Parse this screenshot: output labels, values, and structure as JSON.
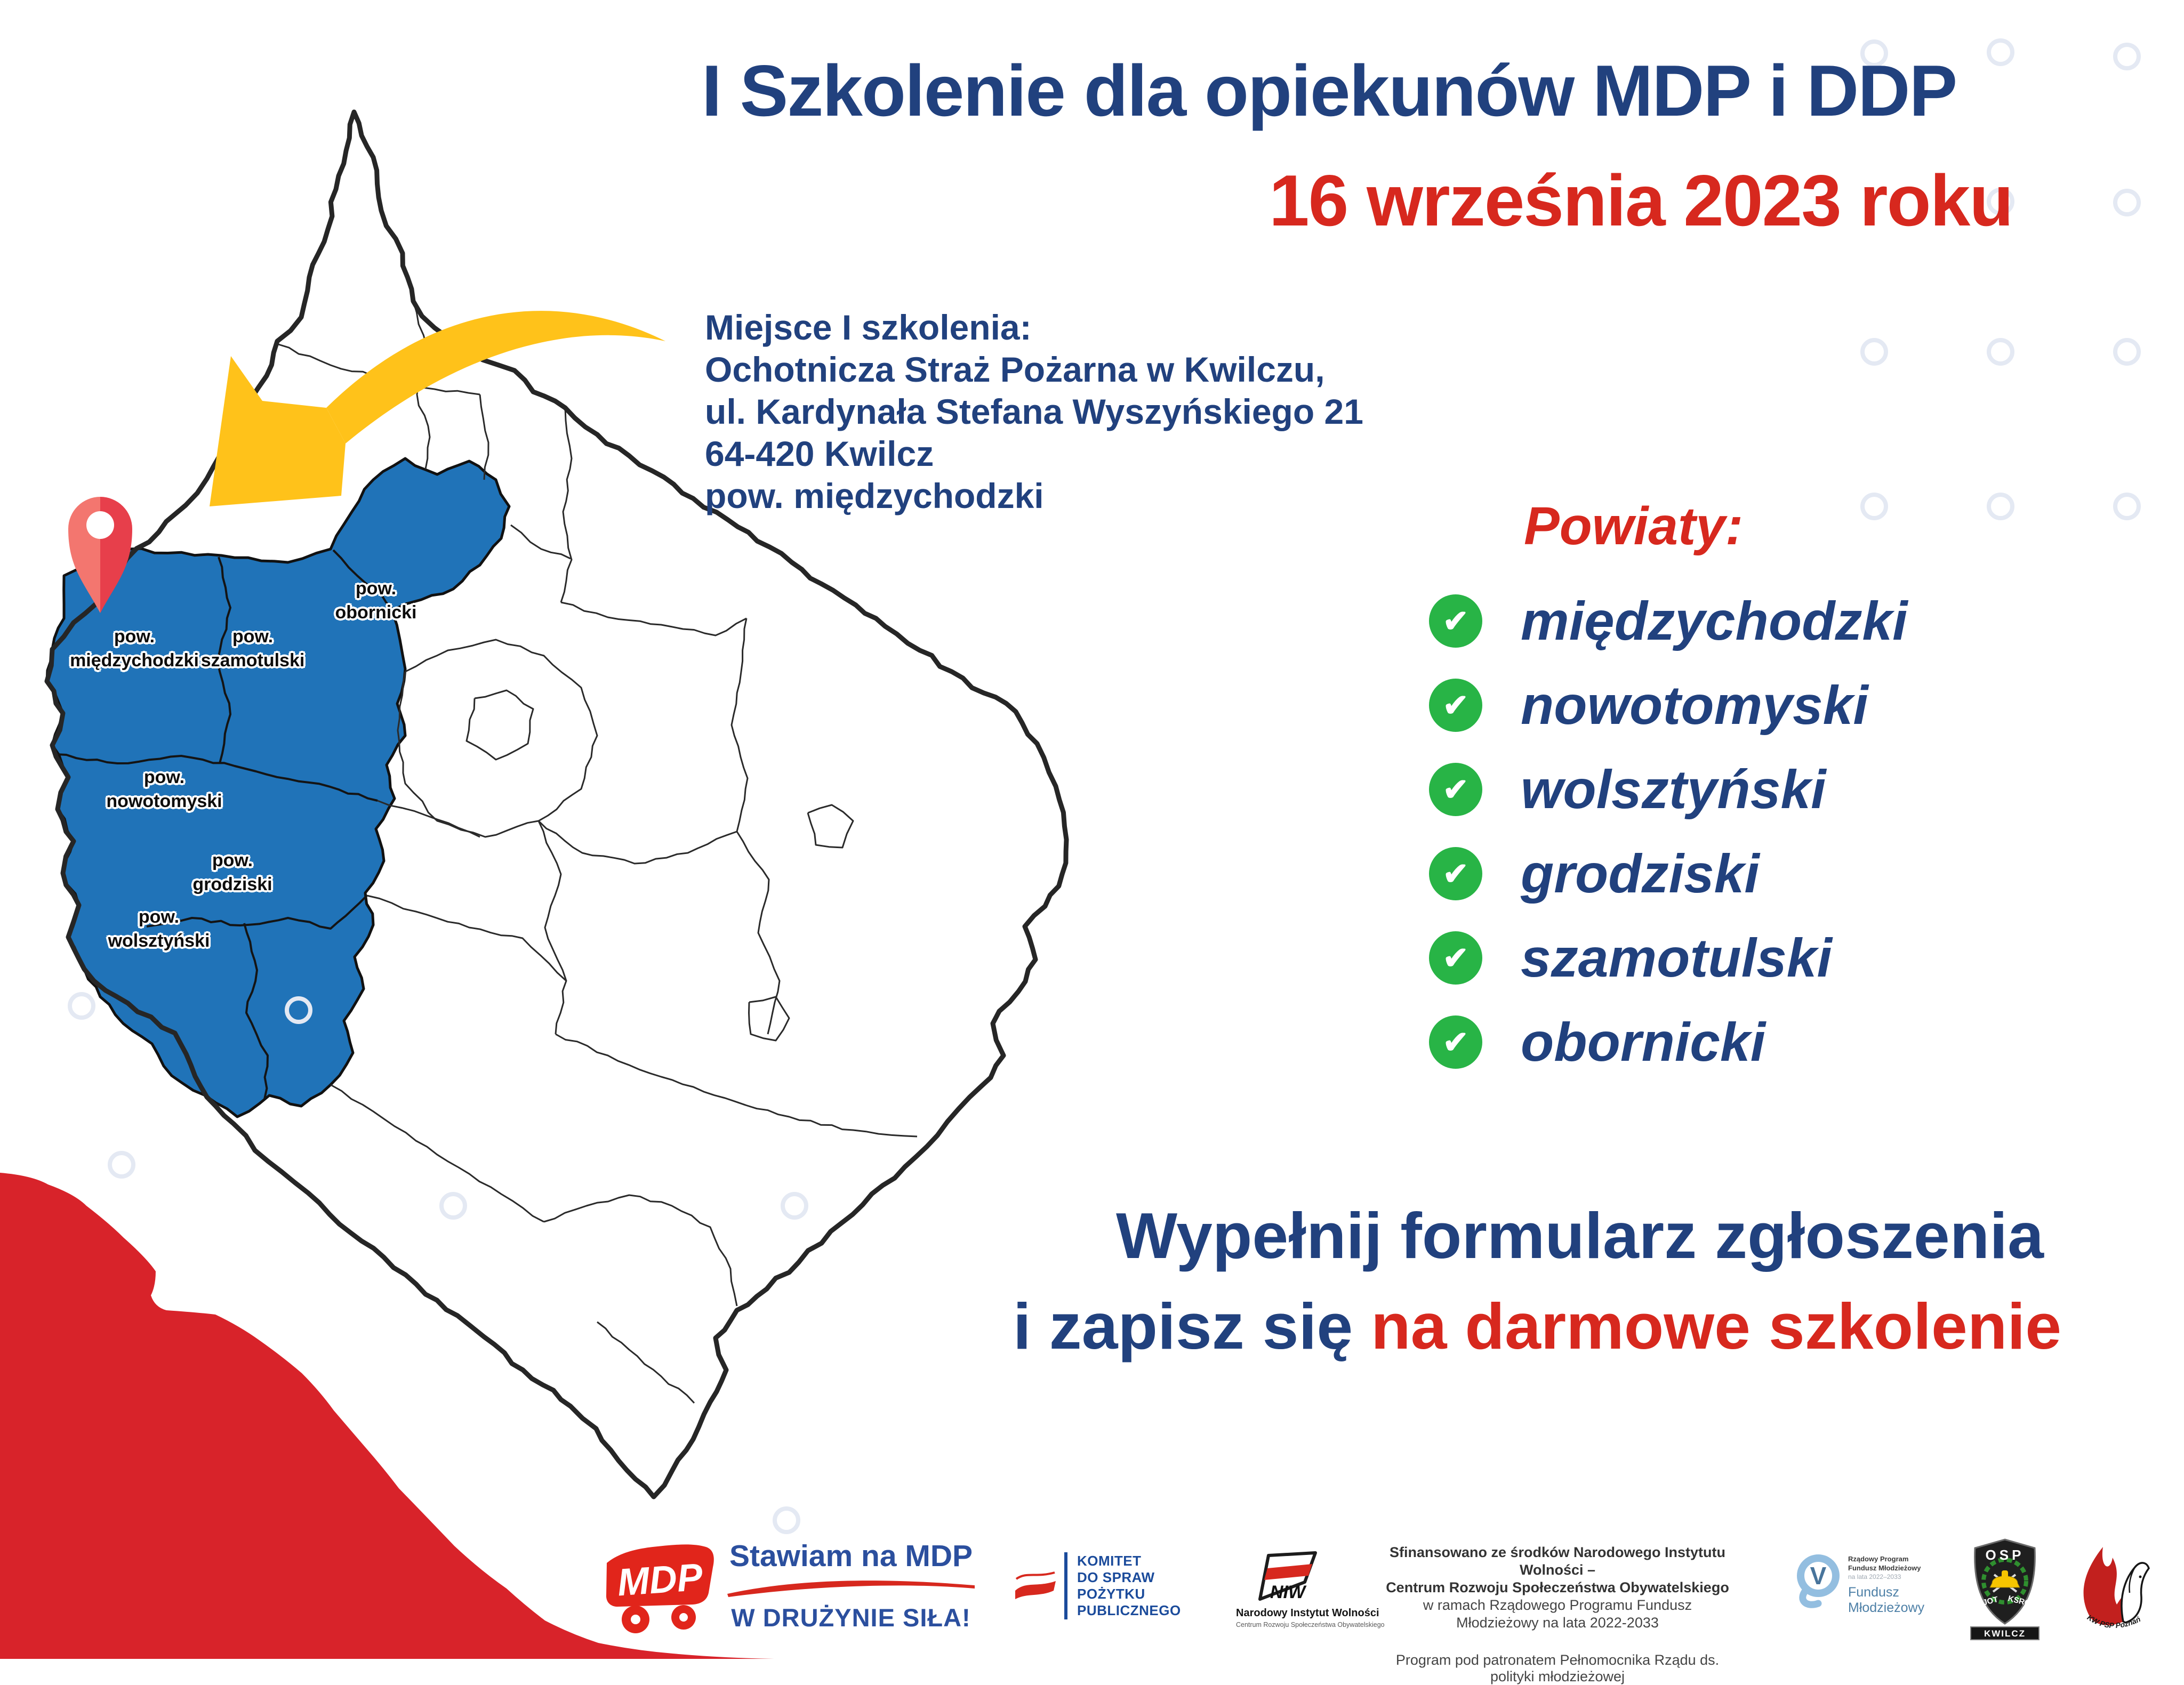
{
  "title": {
    "line1": "I Szkolenie dla opiekunów MDP i DDP",
    "date": "16 września 2023 roku"
  },
  "venue": {
    "heading": "Miejsce I szkolenia:",
    "lines": [
      "Ochotnicza Straż Pożarna w Kwilczu,",
      "ul. Kardynała Stefana Wyszyńskiego 21",
      "64-420 Kwilcz",
      "pow. międzychodzki"
    ]
  },
  "powiaty": {
    "heading": "Powiaty:",
    "items": [
      "międzychodzki",
      "nowotomyski",
      "wolsztyński",
      "grodziski",
      "szamotulski",
      "obornicki"
    ]
  },
  "map_labels": {
    "prefix": "pow.",
    "names": [
      "obornicki",
      "międzychodzki",
      "szamotulski",
      "nowotomyski",
      "grodziski",
      "wolsztyński"
    ]
  },
  "cta": {
    "line1": "Wypełnij formularz zgłoszenia",
    "line2_blue": "i zapisz się",
    "line2_red": "na darmowe szkolenie"
  },
  "footer": {
    "mdp": {
      "truck_text": "MDP",
      "slogan_line1": "Stawiam na MDP",
      "slogan_line2": "W DRUŻYNIE SIŁA!"
    },
    "komitet": {
      "lines": [
        "KOMITET",
        "DO SPRAW",
        "POŻYTKU",
        "PUBLICZNEGO"
      ]
    },
    "niw": {
      "acronym": "NIW",
      "name": "Narodowy Instytut Wolności",
      "subtitle": "Centrum Rozwoju Społeczeństwa Obywatelskiego"
    },
    "funding": {
      "lines": [
        "Sfinansowano ze środków Narodowego Instytutu Wolności –",
        "Centrum Rozwoju Społeczeństwa Obywatelskiego",
        "w ramach Rządowego Programu Fundusz Młodzieżowy na lata 2022-2033",
        "Program pod patronatem Pełnomocnika Rządu ds. polityki młodzieżowej"
      ]
    },
    "fundusz": {
      "icon_letter": "V",
      "small_lines": [
        "Rządowy Program",
        "Fundusz Młodzieżowy",
        "na lata 2022–2033"
      ],
      "big_lines": [
        "Fundusz",
        "Młodzieżowy"
      ]
    },
    "osp": {
      "top": "OSP",
      "jot": "JOT",
      "ksrg": "KSRG",
      "city": "KWILCZ"
    },
    "kwpsp": {
      "arc_text": "KW PSP Poznań"
    }
  },
  "icons": {
    "check": "✔"
  },
  "colors": {
    "navy": "#21417E",
    "red": "#D7281E",
    "map_blue": "#2073B8",
    "green_check": "#28B446",
    "arrow_yellow": "#FFC21A",
    "wedge_red": "#D8232A"
  }
}
